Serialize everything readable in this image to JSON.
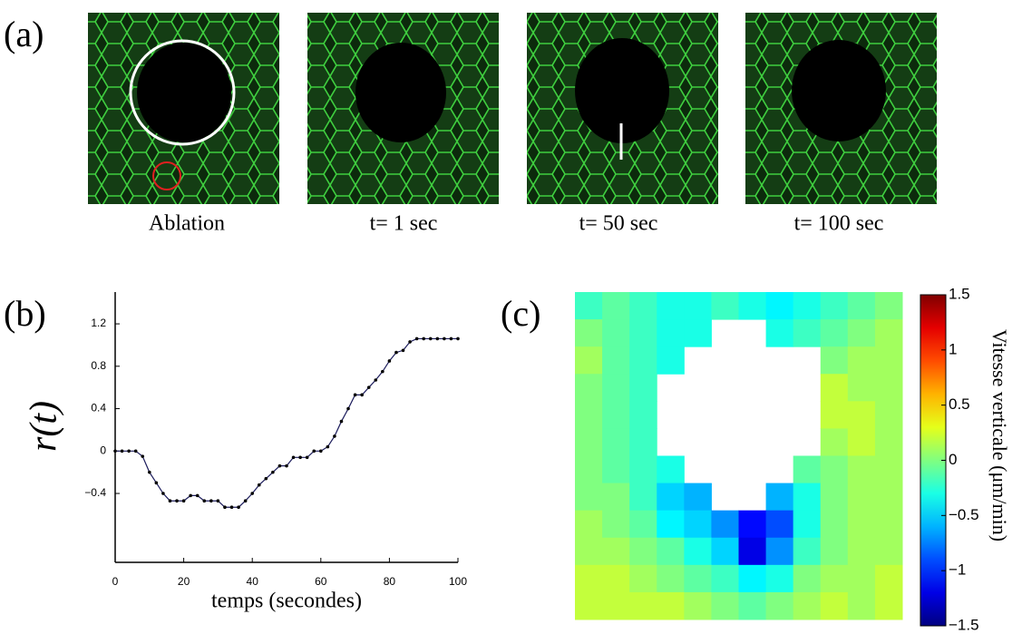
{
  "panel_labels": [
    "(a)",
    "(b)",
    "(c)"
  ],
  "images": {
    "captions": [
      "Ablation",
      "t= 1 sec",
      "t= 50 sec",
      "t= 100 sec"
    ]
  },
  "chart_data": [
    {
      "type": "line",
      "x_label": "temps (secondes)",
      "y_label": "r(t)",
      "color": "#1c1c5c",
      "x": [
        0,
        2,
        4,
        6,
        8,
        10,
        12,
        14,
        16,
        18,
        20,
        22,
        24,
        26,
        28,
        30,
        32,
        34,
        36,
        38,
        40,
        42,
        44,
        46,
        48,
        50,
        52,
        54,
        56,
        58,
        60,
        62,
        64,
        66,
        68,
        70,
        72,
        74,
        76,
        78,
        80,
        82,
        84,
        86,
        88,
        90,
        92,
        94,
        96,
        98,
        100
      ],
      "values": [
        0,
        0,
        0,
        0,
        -0.05,
        -0.2,
        -0.3,
        -0.4,
        -0.47,
        -0.47,
        -0.47,
        -0.42,
        -0.42,
        -0.47,
        -0.47,
        -0.47,
        -0.53,
        -0.53,
        -0.53,
        -0.47,
        -0.4,
        -0.32,
        -0.26,
        -0.2,
        -0.14,
        -0.14,
        -0.06,
        -0.06,
        -0.06,
        0,
        0,
        0.04,
        0.14,
        0.28,
        0.4,
        0.53,
        0.53,
        0.6,
        0.67,
        0.75,
        0.85,
        0.93,
        0.95,
        1.03,
        1.06,
        1.06,
        1.06,
        1.06,
        1.06,
        1.06,
        1.06
      ],
      "xlim": [
        0,
        100
      ],
      "xticks": [
        0,
        20,
        40,
        60,
        80,
        100
      ],
      "ylim": [
        -1.05,
        1.5
      ],
      "yticks": [
        1.2,
        0.8,
        0.4,
        0,
        {
          "value": -0.4,
          "label": "−0.4"
        }
      ]
    },
    {
      "type": "heatmap",
      "colorbar_label": "Vitesse verticale (μm/min)",
      "colormap": "jet",
      "clim": [
        -1.5,
        1.5
      ],
      "cticks": [
        1.5,
        1,
        0.5,
        0,
        {
          "value": -0.5,
          "label": "−0.5"
        },
        {
          "value": -1,
          "label": "−1"
        },
        {
          "value": -1.5,
          "label": "−1.5"
        }
      ],
      "values": [
        [
          -0.2,
          -0.1,
          -0.2,
          -0.3,
          -0.3,
          -0.2,
          -0.3,
          -0.4,
          -0.3,
          -0.2,
          -0.1,
          0
        ],
        [
          0,
          -0.1,
          -0.2,
          -0.3,
          -0.3,
          null,
          null,
          -0.3,
          -0.2,
          -0.1,
          0,
          0.1
        ],
        [
          0.1,
          -0.1,
          -0.2,
          -0.3,
          null,
          null,
          null,
          null,
          null,
          0,
          0.1,
          0.1
        ],
        [
          0,
          -0.1,
          -0.2,
          null,
          null,
          null,
          null,
          null,
          null,
          0.2,
          0.1,
          0.1
        ],
        [
          0,
          -0.1,
          -0.2,
          null,
          null,
          null,
          null,
          null,
          null,
          0.2,
          0.2,
          0.1
        ],
        [
          0,
          -0.1,
          -0.2,
          null,
          null,
          null,
          null,
          null,
          null,
          0.1,
          0.2,
          0.1
        ],
        [
          0,
          -0.1,
          -0.2,
          -0.3,
          null,
          null,
          null,
          null,
          -0.1,
          0,
          0.1,
          0.1
        ],
        [
          0,
          0,
          -0.2,
          -0.5,
          -0.6,
          null,
          null,
          -0.6,
          -0.3,
          0,
          0.1,
          0.1
        ],
        [
          0.1,
          0,
          -0.1,
          -0.4,
          -0.5,
          -0.7,
          -1.1,
          -0.9,
          -0.3,
          0,
          0.1,
          0.1
        ],
        [
          0.1,
          0.1,
          0,
          -0.1,
          -0.3,
          -0.5,
          -1.2,
          -0.7,
          -0.2,
          0,
          0.1,
          0.1
        ],
        [
          0.2,
          0.2,
          0.1,
          0,
          -0.1,
          -0.2,
          -0.4,
          -0.3,
          0,
          0.1,
          0.1,
          0.2
        ],
        [
          0.2,
          0.2,
          0.2,
          0.2,
          0.1,
          0,
          -0.1,
          0,
          0.1,
          0.2,
          0.1,
          0.2
        ]
      ]
    }
  ]
}
